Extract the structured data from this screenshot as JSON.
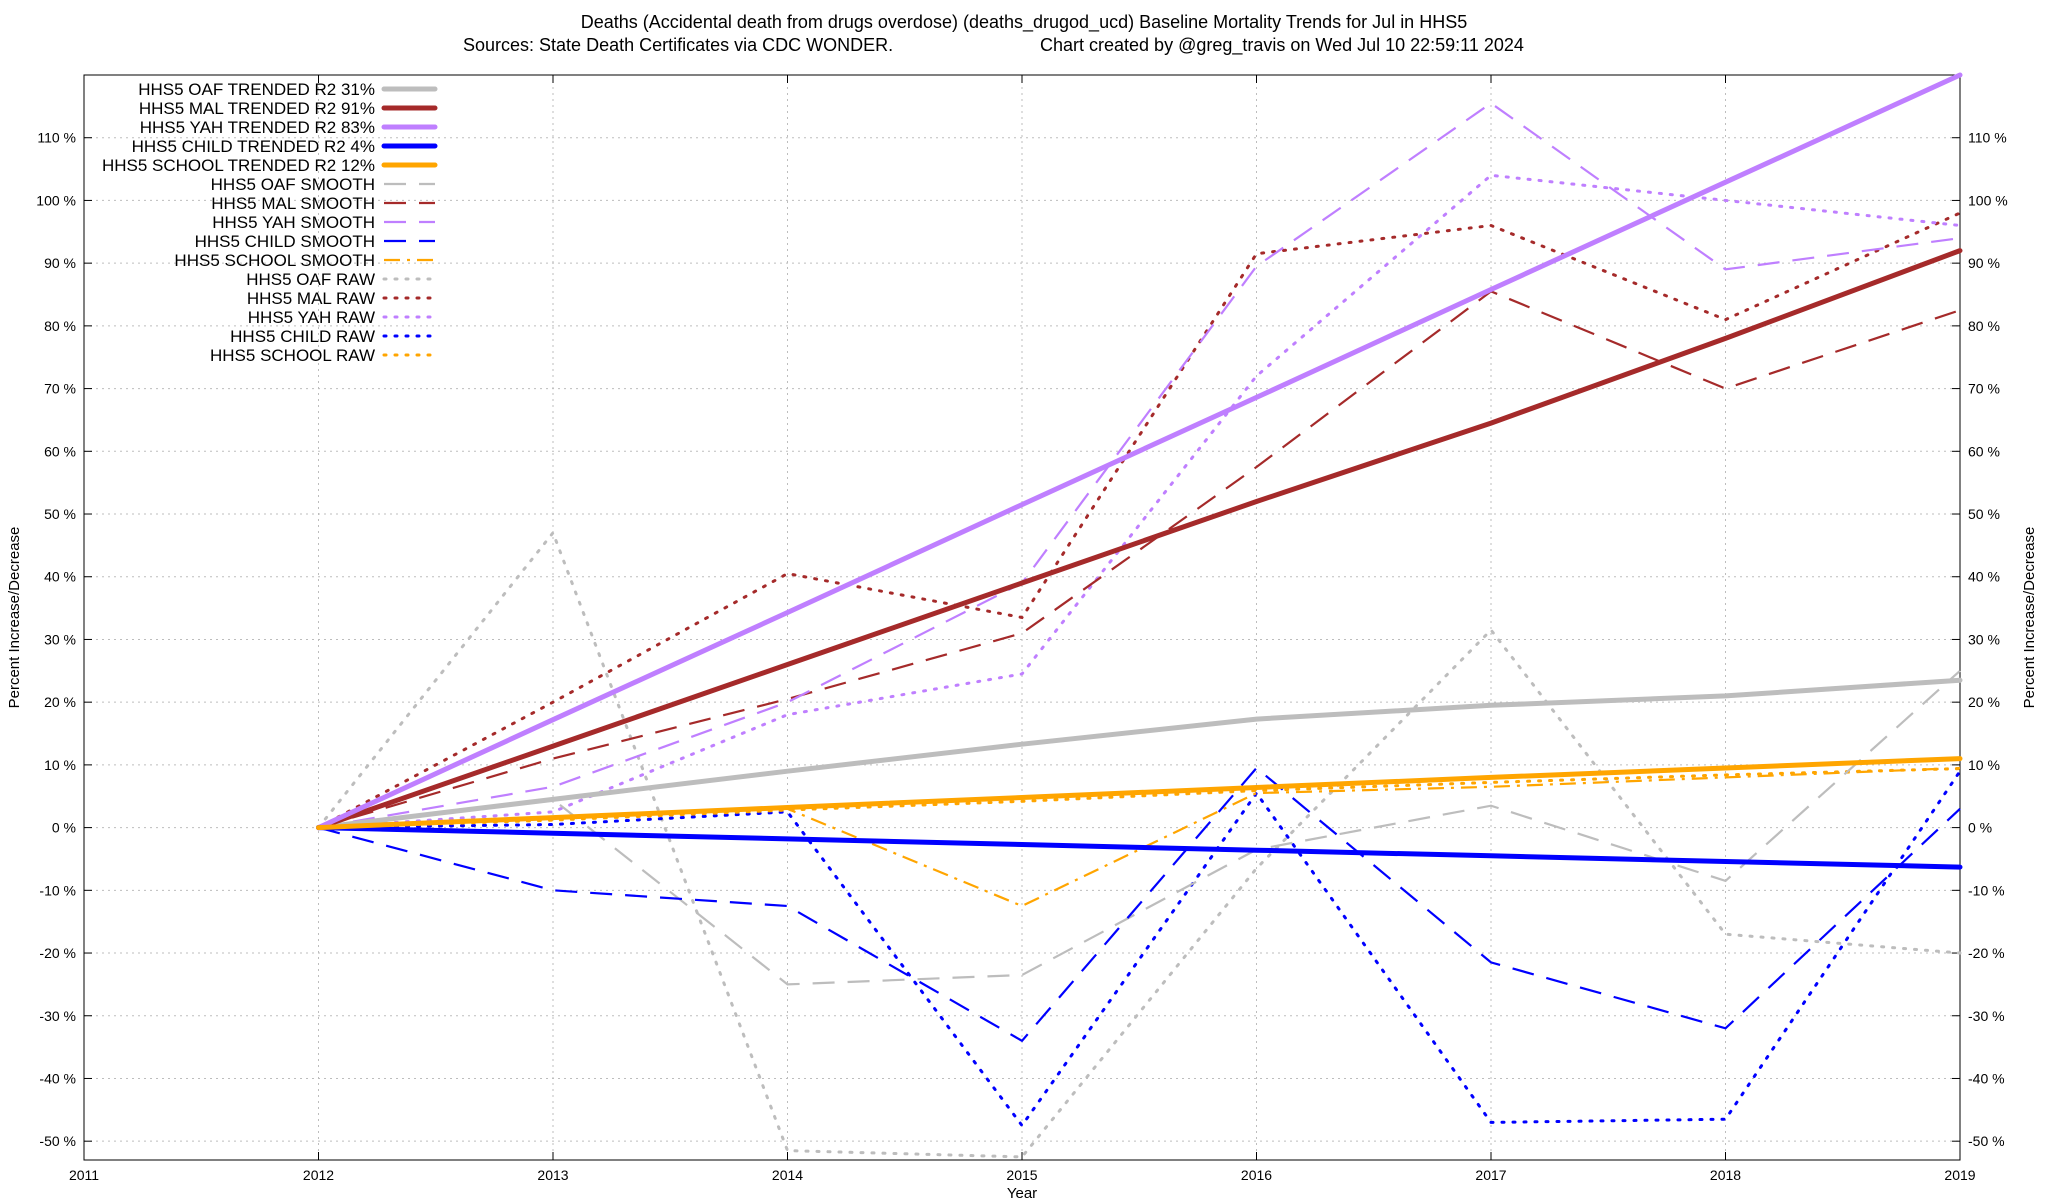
{
  "title": {
    "line1": "Deaths (Accidental death from drugs overdose) (deaths_drugod_ucd)  Baseline Mortality Trends for Jul in HHS5",
    "line2_left": "Sources: State Death Certificates via CDC WONDER.",
    "line2_right": "Chart created by @greg_travis on Wed Jul 10 22:59:11 2024"
  },
  "chart_data": {
    "type": "line",
    "xlabel": "Year",
    "ylabel": "Percent Increase/Decrease",
    "ylabel_right": "Percent Increase/Decrease",
    "xlim": [
      2011,
      2019
    ],
    "ylim": [
      -53,
      120
    ],
    "x_ticks": [
      "2011",
      "2012",
      "2013",
      "2014",
      "2015",
      "2016",
      "2017",
      "2018",
      "2019"
    ],
    "y_ticks": [
      {
        "value": -50,
        "label": "-50 %"
      },
      {
        "value": -40,
        "label": "-40 %"
      },
      {
        "value": -30,
        "label": "-30 %"
      },
      {
        "value": -20,
        "label": "-20 %"
      },
      {
        "value": -10,
        "label": "-10 %"
      },
      {
        "value": 0,
        "label": "0 %"
      },
      {
        "value": 10,
        "label": "10 %"
      },
      {
        "value": 20,
        "label": "20 %"
      },
      {
        "value": 30,
        "label": "30 %"
      },
      {
        "value": 40,
        "label": "40 %"
      },
      {
        "value": 50,
        "label": "50 %"
      },
      {
        "value": 60,
        "label": "60 %"
      },
      {
        "value": 70,
        "label": "70 %"
      },
      {
        "value": 80,
        "label": "80 %"
      },
      {
        "value": 90,
        "label": "90 %"
      },
      {
        "value": 100,
        "label": "100 %"
      },
      {
        "value": 110,
        "label": "110 %"
      }
    ],
    "grid": true,
    "legend_position": "top-left",
    "series": [
      {
        "name": "HHS5 OAF TRENDED R2  31%",
        "color": "#bdbdbd",
        "style": "solid",
        "x": [
          2012,
          2013,
          2014,
          2015,
          2016,
          2017,
          2018,
          2019
        ],
        "values": [
          0,
          4.5,
          9,
          13.3,
          17.3,
          19.5,
          21,
          23.5
        ]
      },
      {
        "name": "HHS5 MAL TRENDED R2  91%",
        "color": "#a52a2a",
        "style": "solid",
        "x": [
          2012,
          2013,
          2014,
          2015,
          2016,
          2017,
          2018,
          2019
        ],
        "values": [
          0,
          13,
          26,
          39,
          52,
          64.5,
          78,
          92
        ]
      },
      {
        "name": "HHS5 YAH TRENDED R2  83%",
        "color": "#bf7fff",
        "style": "solid",
        "x": [
          2012,
          2013,
          2014,
          2015,
          2016,
          2017,
          2018,
          2019
        ],
        "values": [
          0,
          17.2,
          34.3,
          51.5,
          68.6,
          85.8,
          102.9,
          120
        ]
      },
      {
        "name": "HHS5 CHILD TRENDED R2   4%",
        "color": "#0000ff",
        "style": "solid",
        "x": [
          2012,
          2013,
          2014,
          2015,
          2016,
          2017,
          2018,
          2019
        ],
        "values": [
          0,
          -0.9,
          -1.8,
          -2.7,
          -3.6,
          -4.5,
          -5.4,
          -6.3
        ]
      },
      {
        "name": "HHS5 SCHOOL TRENDED R2  12%",
        "color": "#ffa500",
        "style": "solid",
        "x": [
          2012,
          2013,
          2014,
          2015,
          2016,
          2017,
          2018,
          2019
        ],
        "values": [
          0,
          1.6,
          3.2,
          4.8,
          6.4,
          8,
          9.5,
          11
        ]
      },
      {
        "name": "HHS5 OAF SMOOTH",
        "color": "#bdbdbd",
        "style": "dash",
        "x": [
          2012,
          2013,
          2014,
          2015,
          2016,
          2017,
          2018,
          2019
        ],
        "values": [
          0,
          4.5,
          -25,
          -23.5,
          -3.5,
          3.5,
          -8.5,
          25
        ]
      },
      {
        "name": "HHS5 MAL SMOOTH",
        "color": "#a52a2a",
        "style": "dash",
        "x": [
          2012,
          2013,
          2014,
          2015,
          2016,
          2017,
          2018,
          2019
        ],
        "values": [
          0,
          11,
          20.5,
          31,
          57.5,
          85.5,
          70,
          82.5
        ]
      },
      {
        "name": "HHS5 YAH SMOOTH",
        "color": "#bf7fff",
        "style": "dash",
        "x": [
          2012,
          2013,
          2014,
          2015,
          2016,
          2017,
          2018,
          2019
        ],
        "values": [
          0,
          6.5,
          20,
          39,
          89.5,
          115.5,
          89,
          94
        ]
      },
      {
        "name": "HHS5 CHILD SMOOTH",
        "color": "#0000ff",
        "style": "dash",
        "x": [
          2012,
          2013,
          2014,
          2015,
          2016,
          2017,
          2018,
          2019
        ],
        "values": [
          0,
          -10,
          -12.5,
          -34,
          9.5,
          -21.5,
          -32,
          3
        ]
      },
      {
        "name": "HHS5 SCHOOL SMOOTH",
        "color": "#ffa500",
        "style": "dashdot",
        "x": [
          2012,
          2013,
          2014,
          2015,
          2016,
          2017,
          2018,
          2019
        ],
        "values": [
          0,
          1.5,
          3,
          -12.5,
          5.5,
          6.5,
          8,
          9.5
        ]
      },
      {
        "name": "HHS5 OAF RAW",
        "color": "#bdbdbd",
        "style": "dot",
        "x": [
          2012,
          2013,
          2014,
          2015,
          2016,
          2017,
          2018,
          2019
        ],
        "values": [
          0,
          47,
          -51.5,
          -52.5,
          -6.5,
          31.5,
          -17,
          -20
        ]
      },
      {
        "name": "HHS5 MAL RAW",
        "color": "#a52a2a",
        "style": "dot",
        "x": [
          2012,
          2013,
          2014,
          2015,
          2016,
          2017,
          2018,
          2019
        ],
        "values": [
          0,
          20,
          40.5,
          33.5,
          91.5,
          96,
          81,
          98
        ]
      },
      {
        "name": "HHS5 YAH RAW",
        "color": "#bf7fff",
        "style": "dot",
        "x": [
          2012,
          2013,
          2014,
          2015,
          2016,
          2017,
          2018,
          2019
        ],
        "values": [
          0,
          2.5,
          18,
          24.5,
          72,
          104,
          100,
          96
        ]
      },
      {
        "name": "HHS5 CHILD RAW",
        "color": "#0000ff",
        "style": "dot",
        "x": [
          2012,
          2013,
          2014,
          2015,
          2016,
          2017,
          2018,
          2019
        ],
        "values": [
          0,
          0.5,
          2.5,
          -47.5,
          5.5,
          -47,
          -46.5,
          9
        ]
      },
      {
        "name": "HHS5 SCHOOL RAW",
        "color": "#ffa500",
        "style": "dot",
        "x": [
          2012,
          2013,
          2014,
          2015,
          2016,
          2017,
          2018,
          2019
        ],
        "values": [
          0,
          1.2,
          2.8,
          4.2,
          5.9,
          7.2,
          8.4,
          9.4
        ]
      }
    ]
  }
}
